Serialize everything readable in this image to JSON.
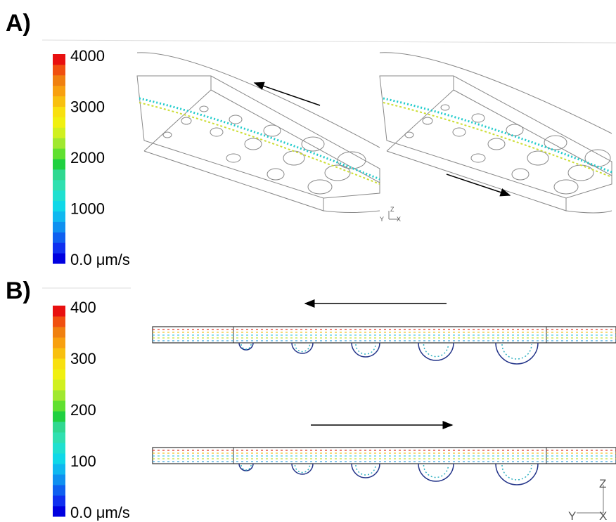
{
  "panels": [
    {
      "label": "A)",
      "colorbar": {
        "ticks": [
          "4000",
          "3000",
          "2000",
          "1000",
          "0.0 μm/s"
        ]
      },
      "triad": [
        "Y",
        "Z",
        "X"
      ]
    },
    {
      "label": "B)",
      "colorbar": {
        "ticks": [
          "400",
          "300",
          "200",
          "100",
          "0.0 μm/s"
        ]
      },
      "triad": [
        "Y",
        "Z",
        "X"
      ]
    }
  ]
}
